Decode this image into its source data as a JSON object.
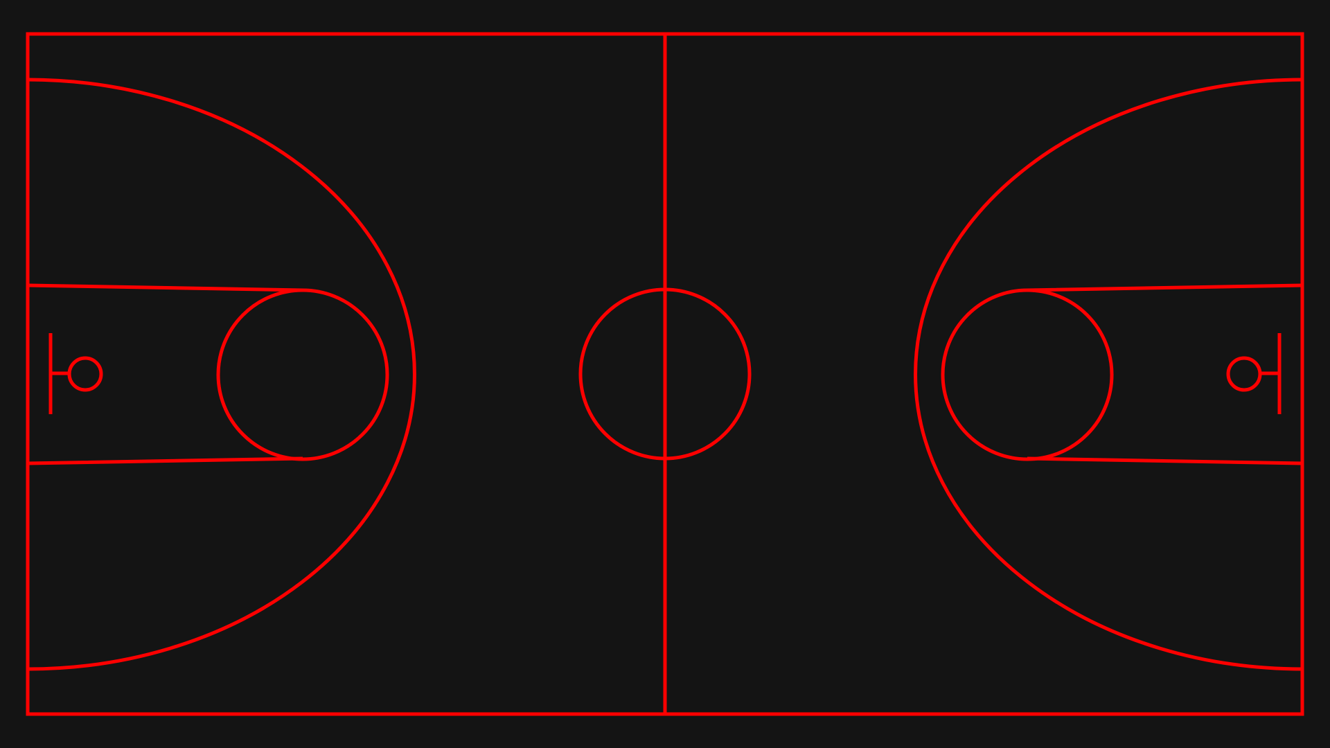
{
  "diagram": {
    "type": "basketball-court",
    "background_color": "#141414",
    "line_color": "#FF0000",
    "elements": [
      "court-boundary",
      "center-line",
      "center-circle",
      "left-three-point-arc",
      "left-free-throw-lane",
      "left-free-throw-circle",
      "left-backboard",
      "left-hoop",
      "right-three-point-arc",
      "right-free-throw-lane",
      "right-free-throw-circle",
      "right-backboard",
      "right-hoop"
    ]
  }
}
